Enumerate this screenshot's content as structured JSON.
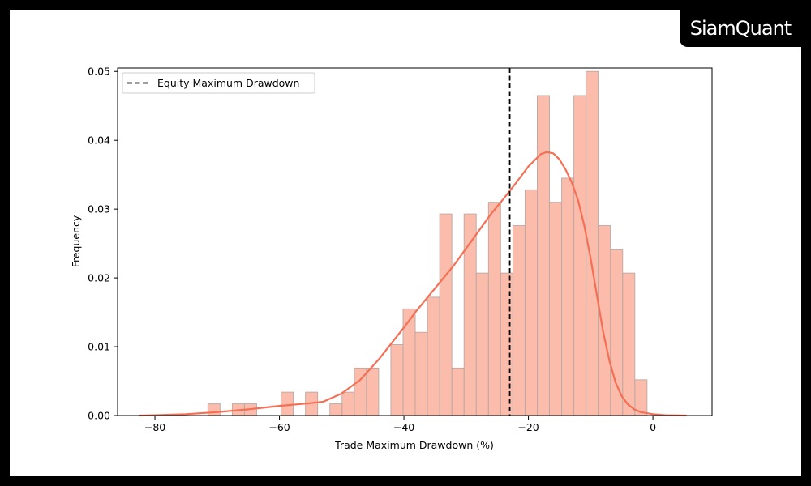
{
  "brand": "SiamQuant",
  "chart_data": {
    "type": "bar",
    "title": "",
    "xlabel": "Trade Maximum Drawdown (%)",
    "ylabel": "Frequency",
    "xlim": [
      -86,
      9.5
    ],
    "ylim": [
      0,
      0.0505
    ],
    "xticks": [
      -80,
      -60,
      -40,
      -20,
      0
    ],
    "xtick_labels": [
      "−80",
      "−60",
      "−40",
      "−20",
      "0"
    ],
    "yticks": [
      0,
      0.01,
      0.02,
      0.03,
      0.04,
      0.05
    ],
    "ytick_labels": [
      "0.00",
      "0.01",
      "0.02",
      "0.03",
      "0.04",
      "0.05"
    ],
    "histogram": {
      "bin_start": -71.5,
      "bin_width": 1.96,
      "values": [
        0.0017,
        0,
        0.0017,
        0.0017,
        0,
        0,
        0.0034,
        0,
        0.0034,
        0,
        0.0017,
        0.0034,
        0.0069,
        0.0069,
        0,
        0.0103,
        0.0155,
        0.0121,
        0.0172,
        0.0293,
        0.0069,
        0.0293,
        0.0207,
        0.031,
        0.0207,
        0.0276,
        0.0328,
        0.0465,
        0.031,
        0.0345,
        0.0465,
        0.05,
        0.0276,
        0.0241,
        0.0207,
        0.0052
      ],
      "color": "#f9a28b"
    },
    "kde": {
      "name": "",
      "color": "#f56f55",
      "x": [
        -82.5,
        -80,
        -75,
        -70,
        -65,
        -60,
        -55,
        -53,
        -50,
        -47,
        -44,
        -42,
        -40,
        -38,
        -35,
        -32,
        -30,
        -28,
        -26,
        -24,
        -22,
        -20,
        -18,
        -17,
        -16,
        -15,
        -14,
        -13,
        -12,
        -11,
        -10,
        -9,
        -8,
        -7,
        -6,
        -5,
        -4,
        -3,
        -2,
        0,
        2,
        5.4
      ],
      "y": [
        0,
        5e-05,
        0.0002,
        0.0005,
        0.0009,
        0.0014,
        0.0018,
        0.002,
        0.0032,
        0.0052,
        0.0082,
        0.0105,
        0.0128,
        0.0152,
        0.0185,
        0.0218,
        0.0243,
        0.0268,
        0.0293,
        0.0315,
        0.0338,
        0.0362,
        0.038,
        0.0383,
        0.0381,
        0.0372,
        0.0357,
        0.0338,
        0.0312,
        0.0275,
        0.0228,
        0.0175,
        0.0122,
        0.008,
        0.0048,
        0.0028,
        0.0016,
        0.0009,
        0.0005,
        0.0002,
        5e-05,
        0
      ]
    },
    "vline": {
      "x": -23,
      "label": "Equity Maximum Drawdown",
      "color": "#000000",
      "style": "dashed"
    },
    "legend": {
      "placement": "upper-left",
      "entries": [
        "Equity Maximum Drawdown"
      ]
    },
    "grid": false
  }
}
